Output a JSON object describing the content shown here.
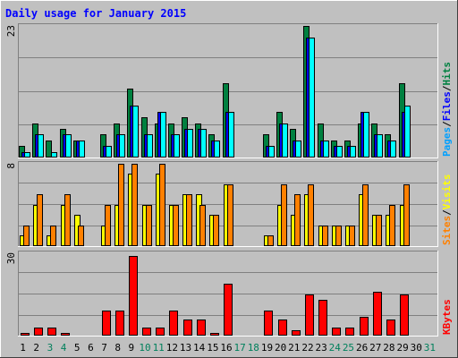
{
  "chart_data": {
    "type": "bar",
    "title": "Daily usage for January 2015",
    "days": [
      "1",
      "2",
      "3",
      "4",
      "5",
      "6",
      "7",
      "8",
      "9",
      "10",
      "11",
      "12",
      "13",
      "14",
      "15",
      "16",
      "17",
      "18",
      "19",
      "20",
      "21",
      "22",
      "23",
      "24",
      "25",
      "26",
      "27",
      "28",
      "29",
      "30",
      "31"
    ],
    "weekend_days": [
      3,
      4,
      10,
      11,
      17,
      18,
      24,
      25,
      31
    ],
    "panels": [
      {
        "id": "hits-files-pages",
        "ymax_label": "23",
        "ymax": 23,
        "series": [
          {
            "name": "Hits",
            "color": "#008040",
            "values": [
              2,
              6,
              3,
              5,
              3,
              0,
              4,
              6,
              12,
              7,
              6,
              6,
              7,
              6,
              4,
              13,
              0,
              0,
              4,
              8,
              5,
              23,
              6,
              3,
              3,
              6,
              6,
              4,
              13,
              0,
              0
            ]
          },
          {
            "name": "Files",
            "color": "#0000ff",
            "values": [
              1,
              4,
              0,
              4,
              3,
              0,
              2,
              4,
              9,
              4,
              8,
              4,
              5,
              5,
              3,
              8,
              0,
              0,
              2,
              6,
              3,
              21,
              3,
              2,
              2,
              8,
              4,
              3,
              8,
              0,
              0
            ]
          },
          {
            "name": "Pages",
            "color": "#00ffff",
            "values": [
              1,
              4,
              1,
              4,
              3,
              0,
              2,
              4,
              9,
              4,
              8,
              4,
              5,
              5,
              3,
              8,
              0,
              0,
              2,
              6,
              3,
              21,
              3,
              2,
              2,
              8,
              4,
              3,
              9,
              0,
              0
            ]
          }
        ],
        "right_labels": [
          {
            "text": "Pages",
            "color": "#00a0ff"
          },
          {
            "text": "Files",
            "color": "#0000ff"
          },
          {
            "text": "Hits",
            "color": "#008040"
          }
        ]
      },
      {
        "id": "visits-sites",
        "ymax_label": "8",
        "ymax": 8,
        "series": [
          {
            "name": "Visits",
            "color": "#ffff00",
            "values": [
              1,
              4,
              1,
              4,
              3,
              0,
              2,
              4,
              7,
              4,
              7,
              4,
              5,
              5,
              3,
              6,
              0,
              0,
              1,
              4,
              3,
              5,
              2,
              2,
              2,
              5,
              3,
              3,
              4,
              0,
              0
            ]
          },
          {
            "name": "Sites",
            "color": "#ff8000",
            "values": [
              2,
              5,
              2,
              5,
              2,
              0,
              4,
              8,
              8,
              4,
              8,
              4,
              5,
              4,
              3,
              6,
              0,
              0,
              1,
              6,
              5,
              6,
              2,
              2,
              2,
              6,
              3,
              4,
              6,
              0,
              0
            ]
          }
        ],
        "right_labels": [
          {
            "text": "Sites",
            "color": "#ff8000"
          },
          {
            "text": "Visits",
            "color": "#ffff00"
          }
        ]
      },
      {
        "id": "kbytes",
        "ymax_label": "30",
        "ymax": 30,
        "series": [
          {
            "name": "KBytes",
            "color": "#ff0000",
            "values": [
              1,
              3,
              3,
              1,
              0,
              0,
              9,
              9,
              29,
              3,
              3,
              9,
              6,
              6,
              1,
              19,
              0,
              0,
              9,
              6,
              2,
              15,
              13,
              3,
              3,
              7,
              16,
              6,
              15,
              0,
              0
            ]
          }
        ],
        "right_labels": [
          {
            "text": "KBytes",
            "color": "#ff0000"
          }
        ]
      }
    ]
  },
  "colors": {
    "background": "#c0c0c0",
    "panel": "#c0c0c0",
    "grid": "#808080",
    "title": "#0000ff",
    "weekday_label": "#000000",
    "weekend_label": "#00805c"
  }
}
